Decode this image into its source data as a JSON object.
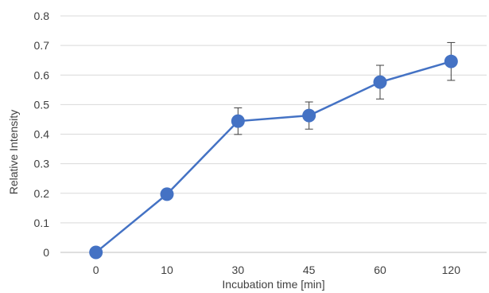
{
  "chart_data": {
    "type": "line",
    "title": "",
    "xlabel": "Incubation time [min]",
    "ylabel": "Relative Intensity",
    "categories": [
      "0",
      "10",
      "30",
      "45",
      "60",
      "120"
    ],
    "series": [
      {
        "values": [
          0.0,
          0.197,
          0.444,
          0.463,
          0.576,
          0.646
        ],
        "error": [
          0.0,
          0.01,
          0.045,
          0.046,
          0.057,
          0.064
        ],
        "color": "#4472c4"
      }
    ],
    "ylim": [
      0,
      0.8
    ],
    "yticks": [
      "0",
      "0.1",
      "0.2",
      "0.3",
      "0.4",
      "0.5",
      "0.6",
      "0.7",
      "0.8"
    ],
    "grid": true,
    "legend": "none"
  }
}
